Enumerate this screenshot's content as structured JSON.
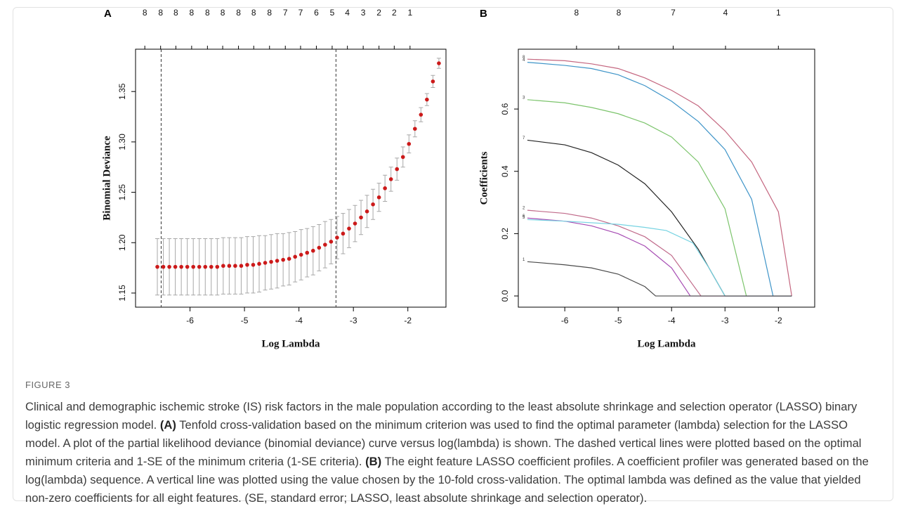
{
  "chart_data": [
    {
      "type": "errorbar",
      "panel": "A",
      "x_label": "Log Lambda",
      "y_label": "Binomial Deviance",
      "x": [
        -6.6,
        -6.49,
        -6.38,
        -6.27,
        -6.16,
        -6.05,
        -5.94,
        -5.83,
        -5.72,
        -5.61,
        -5.5,
        -5.39,
        -5.28,
        -5.17,
        -5.06,
        -4.95,
        -4.84,
        -4.73,
        -4.62,
        -4.51,
        -4.4,
        -4.29,
        -4.18,
        -4.07,
        -3.96,
        -3.85,
        -3.74,
        -3.63,
        -3.52,
        -3.41,
        -3.3,
        -3.19,
        -3.08,
        -2.97,
        -2.86,
        -2.75,
        -2.64,
        -2.53,
        -2.42,
        -2.31,
        -2.2,
        -2.09,
        -1.98,
        -1.87,
        -1.76,
        -1.65,
        -1.54,
        -1.43
      ],
      "values": [
        1.176,
        1.176,
        1.176,
        1.176,
        1.176,
        1.176,
        1.176,
        1.176,
        1.176,
        1.176,
        1.176,
        1.177,
        1.177,
        1.177,
        1.177,
        1.178,
        1.178,
        1.179,
        1.18,
        1.181,
        1.182,
        1.183,
        1.184,
        1.186,
        1.188,
        1.19,
        1.192,
        1.195,
        1.198,
        1.201,
        1.205,
        1.209,
        1.214,
        1.219,
        1.225,
        1.231,
        1.238,
        1.245,
        1.254,
        1.263,
        1.273,
        1.285,
        1.298,
        1.313,
        1.327,
        1.342,
        1.36,
        1.378
      ],
      "errors": [
        0.028,
        0.028,
        0.028,
        0.028,
        0.028,
        0.028,
        0.028,
        0.028,
        0.028,
        0.028,
        0.028,
        0.028,
        0.028,
        0.028,
        0.028,
        0.028,
        0.028,
        0.028,
        0.027,
        0.027,
        0.027,
        0.026,
        0.026,
        0.025,
        0.025,
        0.024,
        0.024,
        0.023,
        0.023,
        0.022,
        0.021,
        0.02,
        0.019,
        0.018,
        0.017,
        0.016,
        0.015,
        0.014,
        0.013,
        0.012,
        0.011,
        0.01,
        0.009,
        0.008,
        0.007,
        0.006,
        0.006,
        0.005
      ],
      "color": "#cc1a1a",
      "error_color": "#a8a8a8",
      "vlines": [
        -6.53,
        -3.32
      ],
      "xlim": [
        -7.0,
        -1.3
      ],
      "ylim": [
        1.136,
        1.392
      ],
      "xticks": [
        -6,
        -5,
        -4,
        -3,
        -2
      ],
      "yticks": [
        1.15,
        {
          "value": 1.2,
          "label": "1.20"
        },
        1.25,
        {
          "value": 1.3,
          "label": "1.30"
        },
        1.35
      ],
      "x2ticks": [
        {
          "value": -6.83,
          "label": "8"
        },
        {
          "value": -6.54,
          "label": "8"
        },
        {
          "value": -6.26,
          "label": "8"
        },
        {
          "value": -5.97,
          "label": "8"
        },
        {
          "value": -5.68,
          "label": "8"
        },
        {
          "value": -5.4,
          "label": "8"
        },
        {
          "value": -5.11,
          "label": "8"
        },
        {
          "value": -4.83,
          "label": "8"
        },
        {
          "value": -4.54,
          "label": "8"
        },
        {
          "value": -4.25,
          "label": "7"
        },
        {
          "value": -3.97,
          "label": "7"
        },
        {
          "value": -3.68,
          "label": "6"
        },
        {
          "value": -3.39,
          "label": "5"
        },
        {
          "value": -3.11,
          "label": "4"
        },
        {
          "value": -2.82,
          "label": "3"
        },
        {
          "value": -2.53,
          "label": "2"
        },
        {
          "value": -2.25,
          "label": "2"
        },
        {
          "value": -1.96,
          "label": "1"
        }
      ]
    },
    {
      "type": "line",
      "panel": "B",
      "x_label": "Log Lambda",
      "y_label": "Coefficients",
      "xlim": [
        -6.87,
        -1.32
      ],
      "ylim": [
        -0.036,
        0.792
      ],
      "xticks": [
        -6,
        -5,
        -4,
        -3,
        -2
      ],
      "yticks": [
        {
          "value": 0,
          "label": "0.0"
        },
        0.2,
        0.4,
        0.6
      ],
      "x2ticks": [
        {
          "value": -5.78,
          "label": "8"
        },
        {
          "value": -4.99,
          "label": "8"
        },
        {
          "value": -3.97,
          "label": "7"
        },
        {
          "value": -2.99,
          "label": "4"
        },
        {
          "value": -2.0,
          "label": "1"
        }
      ],
      "series": [
        {
          "name": "8",
          "color": "#c4667f",
          "x": [
            -6.7,
            -6,
            -5.5,
            -5,
            -4.5,
            -4,
            -3.5,
            -3,
            -2.5,
            -2,
            -1.75
          ],
          "values": [
            0.76,
            0.755,
            0.745,
            0.73,
            0.7,
            0.66,
            0.61,
            0.53,
            0.43,
            0.27,
            0
          ]
        },
        {
          "name": "4",
          "color": "#3e94c8",
          "x": [
            -6.7,
            -6,
            -5.5,
            -5,
            -4.5,
            -4,
            -3.5,
            -3,
            -2.5,
            -2.1,
            -1.75
          ],
          "values": [
            0.75,
            0.74,
            0.73,
            0.71,
            0.675,
            0.625,
            0.56,
            0.47,
            0.31,
            0,
            0
          ]
        },
        {
          "name": "3",
          "color": "#7cc46c",
          "x": [
            -6.7,
            -6,
            -5.5,
            -5,
            -4.5,
            -4,
            -3.5,
            -3,
            -2.6,
            -1.75
          ],
          "values": [
            0.63,
            0.62,
            0.605,
            0.585,
            0.555,
            0.51,
            0.43,
            0.28,
            0,
            0
          ]
        },
        {
          "name": "7",
          "color": "#222222",
          "x": [
            -6.7,
            -6,
            -5.5,
            -5,
            -4.5,
            -4,
            -3.5,
            -3,
            -1.75
          ],
          "values": [
            0.5,
            0.485,
            0.46,
            0.42,
            0.36,
            0.27,
            0.15,
            0,
            0
          ]
        },
        {
          "name": "2",
          "color": "#c06a8a",
          "x": [
            -6.7,
            -6,
            -5.5,
            -5,
            -4.5,
            -4,
            -3.45,
            -1.75
          ],
          "values": [
            0.275,
            0.265,
            0.25,
            0.225,
            0.19,
            0.13,
            0,
            0
          ]
        },
        {
          "name": "6",
          "color": "#a64bb3",
          "x": [
            -6.7,
            -6,
            -5.5,
            -5,
            -4.5,
            -4,
            -3.65,
            -1.75
          ],
          "values": [
            0.25,
            0.24,
            0.225,
            0.2,
            0.16,
            0.09,
            0,
            0
          ]
        },
        {
          "name": "5",
          "color": "#76d3e2",
          "x": [
            -6.7,
            -6,
            -5,
            -4.5,
            -4.1,
            -3.6,
            -3.3,
            -3,
            -1.75
          ],
          "values": [
            0.245,
            0.24,
            0.23,
            0.22,
            0.21,
            0.17,
            0.09,
            0,
            0
          ]
        },
        {
          "name": "1",
          "color": "#4a4a4a",
          "x": [
            -6.7,
            -6,
            -5.5,
            -5,
            -4.5,
            -4.3,
            -1.75
          ],
          "values": [
            0.11,
            0.1,
            0.09,
            0.07,
            0.03,
            0,
            0
          ]
        }
      ]
    }
  ],
  "caption": {
    "label": "FIGURE 3",
    "segments": [
      {
        "text": "Clinical and demographic ischemic stroke (IS) risk factors in the male population according to the least absolute shrinkage and selection operator (LASSO) binary logistic regression model. ",
        "bold": false
      },
      {
        "text": "(A)",
        "bold": true
      },
      {
        "text": " Tenfold cross-validation based on the minimum criterion was used to find the optimal parameter (lambda) selection for the LASSO model. A plot of the partial likelihood deviance (binomial deviance) curve versus log(lambda) is shown. The dashed vertical lines were plotted based on the optimal minimum criteria and 1-SE of the minimum criteria (1-SE criteria). ",
        "bold": false
      },
      {
        "text": "(B)",
        "bold": true
      },
      {
        "text": " The eight feature LASSO coefficient profiles. A coefficient profiler was generated based on the log(lambda) sequence. A vertical line was plotted using the value chosen by the 10-fold cross-validation. The optimal lambda was defined as the value that yielded non-zero coefficients for all eight features. (SE, standard error; LASSO, least absolute shrinkage and selection operator).",
        "bold": false
      }
    ]
  }
}
